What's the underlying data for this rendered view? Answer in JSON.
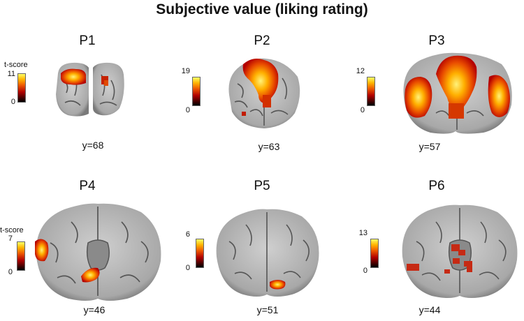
{
  "title": "Subjective value (liking rating)",
  "colorbar_unit": "t-score",
  "panels": [
    {
      "label": "P1",
      "coord": "y=68",
      "cmax": "11",
      "cmin": "0"
    },
    {
      "label": "P2",
      "coord": "y=63",
      "cmax": "19",
      "cmin": "0"
    },
    {
      "label": "P3",
      "coord": "y=57",
      "cmax": "12",
      "cmin": "0"
    },
    {
      "label": "P4",
      "coord": "y=46",
      "cmax": "7",
      "cmin": "0"
    },
    {
      "label": "P5",
      "coord": "y=51",
      "cmax": "6",
      "cmin": "0"
    },
    {
      "label": "P6",
      "coord": "y=44",
      "cmax": "13",
      "cmin": "0"
    }
  ],
  "colors": {
    "brain": "#bdbdbd",
    "sulci": "#4a4a4a",
    "heat_low": "#b00000",
    "heat_mid": "#ee5a00",
    "heat_high": "#ffe14a"
  }
}
